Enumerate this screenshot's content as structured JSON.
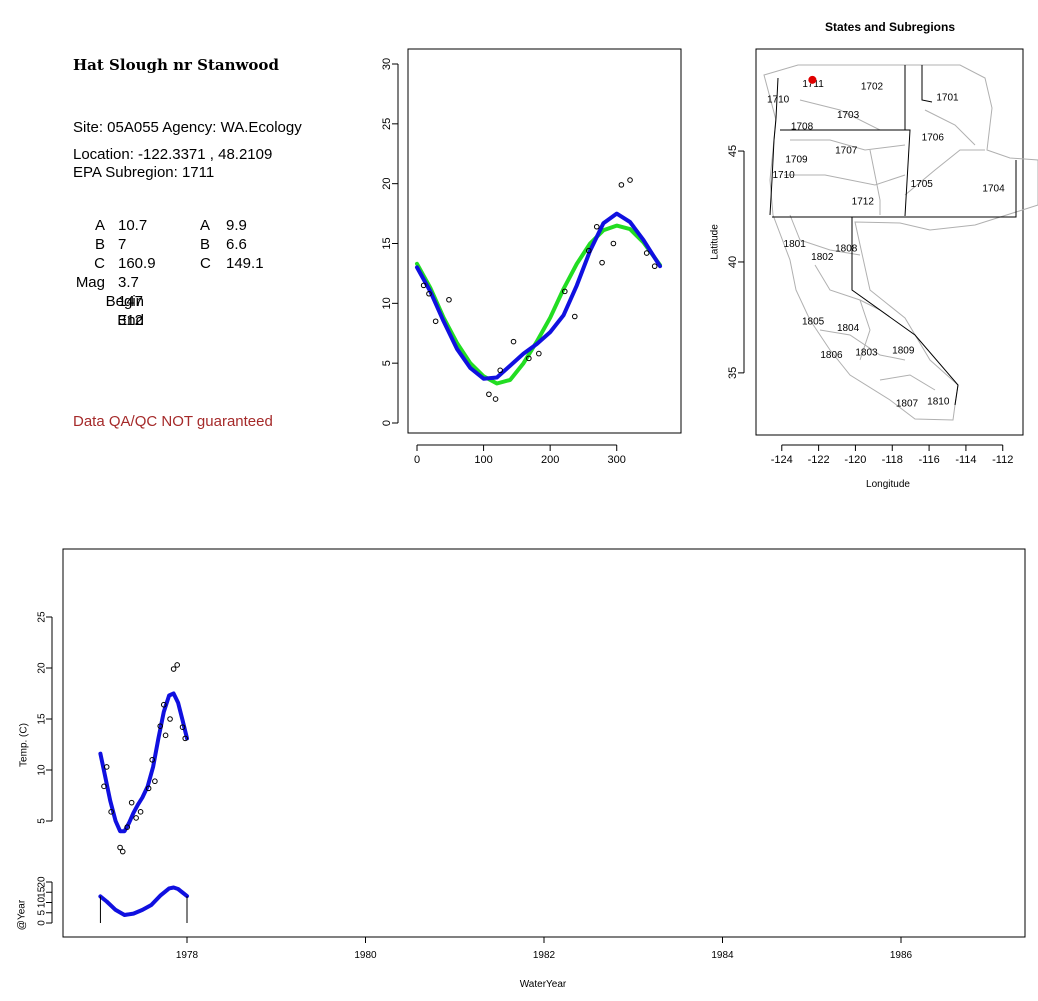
{
  "site": {
    "title": "Hat Slough nr Stanwood",
    "site_line": "Site: 05A055     Agency: WA.Ecology",
    "location_line": "Location: -122.3371 , 48.2109",
    "subregion_line": "EPA Subregion: 1711",
    "qa_note": "Data QA/QC NOT guaranteed"
  },
  "params": {
    "rows": [
      {
        "label": "A",
        "v1": "10.7",
        "label2": "A",
        "v2": "9.9"
      },
      {
        "label": "B",
        "v1": "7",
        "label2": "B",
        "v2": "6.6"
      },
      {
        "label": "C",
        "v1": "160.9",
        "label2": "C",
        "v2": "149.1"
      },
      {
        "label": "Mag",
        "v1": "3.7"
      },
      {
        "label": "Begin",
        "v1": "147"
      },
      {
        "label": "End",
        "v1": "312"
      }
    ]
  },
  "colors": {
    "green": "#22dd22",
    "blue": "#1010e0",
    "point": "#000000",
    "site_marker": "#e00000",
    "qa_text": "#a52a2a",
    "boundary": "#aaaaaa"
  },
  "map": {
    "title": "States and Subregions",
    "xlabel": "Longitude",
    "ylabel": "Latitude",
    "xticks": [
      "-124",
      "-122",
      "-120",
      "-118",
      "-116",
      "-114",
      "-112"
    ],
    "yticks": [
      "35",
      "40",
      "45"
    ],
    "xlim": [
      -125.4,
      -110.9
    ],
    "ylim": [
      32.2,
      49.6
    ],
    "site": {
      "lon": -122.3371,
      "lat": 48.2109
    },
    "regions": [
      {
        "code": "1711",
        "lon": -122.3,
        "lat": 48.0
      },
      {
        "code": "1702",
        "lon": -119.1,
        "lat": 47.9
      },
      {
        "code": "1701",
        "lon": -115.0,
        "lat": 47.4
      },
      {
        "code": "1710",
        "lon": -124.2,
        "lat": 47.3
      },
      {
        "code": "1703",
        "lon": -120.4,
        "lat": 46.6
      },
      {
        "code": "1708",
        "lon": -122.9,
        "lat": 46.1
      },
      {
        "code": "1706",
        "lon": -115.8,
        "lat": 45.6
      },
      {
        "code": "1707",
        "lon": -120.5,
        "lat": 45.0
      },
      {
        "code": "1709",
        "lon": -123.2,
        "lat": 44.6
      },
      {
        "code": "1710",
        "lon": -123.9,
        "lat": 43.9
      },
      {
        "code": "1705",
        "lon": -116.4,
        "lat": 43.5
      },
      {
        "code": "1704",
        "lon": -112.5,
        "lat": 43.3
      },
      {
        "code": "1712",
        "lon": -119.6,
        "lat": 42.7
      },
      {
        "code": "1801",
        "lon": -123.3,
        "lat": 40.8
      },
      {
        "code": "1808",
        "lon": -120.5,
        "lat": 40.6
      },
      {
        "code": "1802",
        "lon": -121.8,
        "lat": 40.2
      },
      {
        "code": "1805",
        "lon": -122.3,
        "lat": 37.3
      },
      {
        "code": "1804",
        "lon": -120.4,
        "lat": 37.0
      },
      {
        "code": "1806",
        "lon": -121.3,
        "lat": 35.8
      },
      {
        "code": "1803",
        "lon": -119.4,
        "lat": 35.9
      },
      {
        "code": "1809",
        "lon": -117.4,
        "lat": 36.0
      },
      {
        "code": "1810",
        "lon": -115.5,
        "lat": 33.7
      },
      {
        "code": "1807",
        "lon": -117.2,
        "lat": 33.6
      }
    ]
  },
  "chart_data": [
    {
      "type": "scatter",
      "title": "",
      "xlabel": "",
      "ylabel": "",
      "xlim": [
        0,
        365
      ],
      "ylim": [
        0,
        30
      ],
      "xticks": [
        0,
        100,
        200,
        300
      ],
      "yticks": [
        0,
        5,
        10,
        15,
        20,
        25,
        30
      ],
      "points": [
        [
          10,
          11.5
        ],
        [
          18,
          10.8
        ],
        [
          28,
          8.5
        ],
        [
          48,
          10.3
        ],
        [
          108,
          2.4
        ],
        [
          118,
          2.0
        ],
        [
          125,
          4.4
        ],
        [
          145,
          6.8
        ],
        [
          168,
          5.4
        ],
        [
          183,
          5.8
        ],
        [
          222,
          11.0
        ],
        [
          237,
          8.9
        ],
        [
          258,
          14.4
        ],
        [
          270,
          16.4
        ],
        [
          278,
          13.4
        ],
        [
          295,
          15.0
        ],
        [
          307,
          19.9
        ],
        [
          320,
          20.3
        ],
        [
          345,
          14.2
        ],
        [
          357,
          13.1
        ]
      ],
      "series": [
        {
          "name": "",
          "color": "green",
          "x": [
            0,
            20,
            40,
            60,
            80,
            100,
            120,
            140,
            160,
            180,
            200,
            220,
            240,
            260,
            280,
            300,
            320,
            340,
            365
          ],
          "y": [
            13.3,
            11.3,
            8.8,
            6.7,
            5.0,
            3.9,
            3.3,
            3.6,
            5.0,
            6.8,
            8.8,
            11.2,
            13.3,
            15.0,
            16.1,
            16.5,
            16.2,
            15.1,
            13.2
          ]
        },
        {
          "name": "",
          "color": "blue",
          "x": [
            0,
            20,
            40,
            60,
            80,
            100,
            120,
            140,
            160,
            180,
            200,
            220,
            240,
            260,
            280,
            300,
            320,
            340,
            365
          ],
          "y": [
            13.0,
            11.0,
            8.5,
            6.2,
            4.6,
            3.7,
            3.8,
            4.8,
            5.8,
            6.6,
            7.6,
            9.0,
            11.5,
            14.4,
            16.7,
            17.5,
            16.8,
            15.3,
            13.1
          ]
        }
      ]
    },
    {
      "type": "line",
      "title": "",
      "xlabel": "WaterYear",
      "ylabel": "Temp. (C)",
      "ylabel2": "@Year",
      "xlim": [
        1976.6,
        1987.2
      ],
      "xticks": [
        1978,
        1980,
        1982,
        1984,
        1986
      ],
      "ylim": [
        0,
        30
      ],
      "yticks": [
        5,
        10,
        15,
        20,
        25
      ],
      "yticks_small": [
        0,
        5,
        10,
        15,
        20
      ],
      "ylim_small": [
        0,
        20
      ],
      "points": [
        [
          1977.07,
          8.4
        ],
        [
          1977.1,
          10.3
        ],
        [
          1977.15,
          5.9
        ],
        [
          1977.25,
          2.4
        ],
        [
          1977.28,
          2.0
        ],
        [
          1977.33,
          4.4
        ],
        [
          1977.38,
          6.8
        ],
        [
          1977.43,
          5.3
        ],
        [
          1977.48,
          5.9
        ],
        [
          1977.57,
          8.2
        ],
        [
          1977.61,
          11.0
        ],
        [
          1977.64,
          8.9
        ],
        [
          1977.7,
          14.3
        ],
        [
          1977.74,
          16.4
        ],
        [
          1977.76,
          13.4
        ],
        [
          1977.81,
          15.0
        ],
        [
          1977.85,
          19.9
        ],
        [
          1977.89,
          20.3
        ],
        [
          1977.95,
          14.2
        ],
        [
          1977.98,
          13.1
        ]
      ],
      "series": [
        {
          "name": "",
          "color": "blue",
          "x": [
            1977.03,
            1977.08,
            1977.14,
            1977.2,
            1977.25,
            1977.3,
            1977.35,
            1977.4,
            1977.45,
            1977.5,
            1977.56,
            1977.62,
            1977.68,
            1977.74,
            1977.8,
            1977.85,
            1977.9,
            1977.95,
            1978.0
          ],
          "y": [
            11.6,
            9.5,
            7.0,
            5.0,
            4.0,
            4.0,
            4.8,
            5.8,
            6.6,
            7.3,
            8.4,
            10.3,
            13.1,
            15.7,
            17.3,
            17.5,
            16.6,
            14.9,
            13.1
          ]
        },
        {
          "name": "",
          "color": "blue",
          "x": [
            1977.03,
            1977.1,
            1977.2,
            1977.3,
            1977.4,
            1977.5,
            1977.6,
            1977.7,
            1977.8,
            1977.85,
            1977.9,
            1977.95,
            1978.0
          ],
          "y": [
            13.0,
            10.5,
            6.4,
            3.9,
            4.6,
            6.4,
            8.8,
            13.3,
            16.9,
            17.3,
            16.6,
            14.9,
            13.1
          ]
        }
      ]
    }
  ]
}
